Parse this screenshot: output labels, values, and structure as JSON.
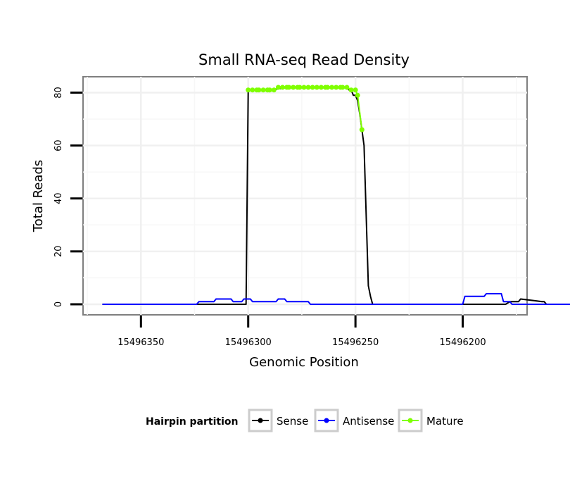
{
  "chart_data": {
    "type": "line",
    "title": "Small RNA-seq Read Density",
    "xlabel": "Genomic Position",
    "ylabel": "Total Reads",
    "x_reversed": true,
    "xlim": [
      15496377,
      15496170
    ],
    "ylim": [
      -4,
      86
    ],
    "x_ticks": [
      15496350,
      15496300,
      15496250,
      15496200
    ],
    "x_tick_labels": [
      "15496350",
      "15496300",
      "15496250",
      "15496200"
    ],
    "y_ticks": [
      0,
      20,
      40,
      60,
      80
    ],
    "y_tick_labels": [
      "0",
      "20",
      "40",
      "60",
      "80"
    ],
    "legend": {
      "title": "Hairpin partition",
      "position": "bottom",
      "entries": [
        "Sense",
        "Antisense",
        "Mature"
      ]
    },
    "series": [
      {
        "name": "Sense",
        "color": "#000000",
        "x": [
          15496368,
          15496301,
          15496300,
          15496290,
          15496281,
          15496280,
          15496279,
          15496278,
          15496277,
          15496276,
          15496275,
          15496274,
          15496273,
          15496272,
          15496271,
          15496270,
          15496269,
          15496268,
          15496267,
          15496266,
          15496265,
          15496264,
          15496263,
          15496262,
          15496261,
          15496260,
          15496259,
          15496258,
          15496257,
          15496256,
          15496255,
          15496254,
          15496253,
          15496252,
          15496251,
          15496250,
          15496249,
          15496248,
          15496247,
          15496246,
          15496244,
          15496243,
          15496242,
          15496241,
          15496200,
          15496180,
          15496178,
          15496176,
          15496174,
          15496173,
          15496163,
          15496162,
          15496161,
          15496140
        ],
        "y": [
          0,
          0,
          81,
          81,
          82,
          82,
          82,
          82,
          82,
          82,
          82,
          82,
          82,
          82,
          82,
          82,
          82,
          82,
          82,
          82,
          82,
          82,
          82,
          82,
          82,
          82,
          82,
          82,
          82,
          82,
          82,
          82,
          81,
          81,
          79,
          79,
          77,
          72,
          66,
          60,
          7,
          3,
          0,
          0,
          0,
          0,
          1,
          1,
          1,
          2,
          1,
          1,
          0,
          0
        ]
      },
      {
        "name": "Antisense",
        "color": "#0000ff",
        "x": [
          15496368,
          15496324,
          15496323,
          15496316,
          15496315,
          15496308,
          15496307,
          15496303,
          15496302,
          15496299,
          15496298,
          15496287,
          15496286,
          15496283,
          15496282,
          15496272,
          15496271,
          15496200,
          15496199,
          15496190,
          15496189,
          15496182,
          15496181,
          15496178,
          15496177,
          15496166,
          15496165,
          15496140
        ],
        "y": [
          0,
          0,
          1,
          1,
          2,
          2,
          1,
          1,
          2,
          2,
          1,
          1,
          2,
          2,
          1,
          1,
          0,
          0,
          3,
          3,
          4,
          4,
          1,
          1,
          0,
          0,
          0,
          0
        ]
      }
    ],
    "mature_points": {
      "name": "Mature",
      "color": "#7fff00",
      "x": [
        15496300,
        15496298,
        15496296,
        15496295,
        15496293,
        15496291,
        15496290,
        15496288,
        15496286,
        15496284,
        15496282,
        15496281,
        15496279,
        15496277,
        15496276,
        15496274,
        15496272,
        15496270,
        15496268,
        15496266,
        15496264,
        15496263,
        15496261,
        15496259,
        15496257,
        15496256,
        15496254,
        15496252,
        15496250,
        15496249,
        15496247
      ],
      "y": [
        81,
        81,
        81,
        81,
        81,
        81,
        81,
        81,
        82,
        82,
        82,
        82,
        82,
        82,
        82,
        82,
        82,
        82,
        82,
        82,
        82,
        82,
        82,
        82,
        82,
        82,
        82,
        81,
        81,
        79,
        66
      ]
    }
  }
}
